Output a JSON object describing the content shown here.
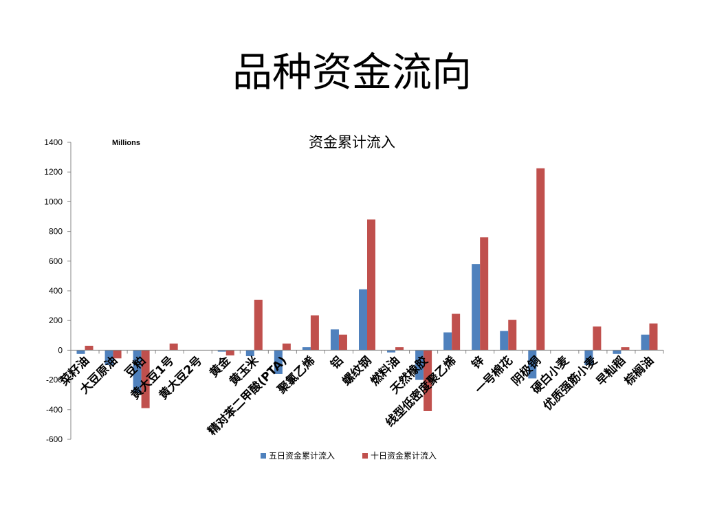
{
  "slide": {
    "title": "品种资金流向"
  },
  "chart_data": {
    "type": "bar",
    "title": "资金累计流入",
    "unit_label": "Millions",
    "ylim": [
      -600,
      1400
    ],
    "yticks": [
      1400,
      1200,
      1000,
      800,
      600,
      400,
      200,
      0,
      -200,
      -400,
      -600
    ],
    "grid": false,
    "legend_position": "bottom",
    "categories": [
      "菜籽油",
      "大豆原油",
      "豆粕",
      "黄大豆1号",
      "黄大豆2号",
      "黄金",
      "黄玉米",
      "精对苯二甲酸(PTA)",
      "聚氯乙烯",
      "铝",
      "螺纹钢",
      "燃料油",
      "天然橡胶",
      "线型低密度聚乙烯",
      "锌",
      "一号棉花",
      "阴极铜",
      "硬白小麦",
      "优质强筋小麦",
      "早籼稻",
      "棕榈油"
    ],
    "series": [
      {
        "name": "五日资金累计流入",
        "color": "#4f81bd",
        "values": [
          -25,
          -100,
          -290,
          0,
          0,
          -10,
          -40,
          -160,
          20,
          140,
          410,
          -15,
          -200,
          120,
          580,
          130,
          -190,
          0,
          -100,
          -25,
          105
        ]
      },
      {
        "name": "十日资金累计流入",
        "color": "#c0504d",
        "values": [
          30,
          -55,
          -390,
          45,
          0,
          -35,
          340,
          45,
          235,
          105,
          880,
          20,
          -410,
          245,
          760,
          205,
          1225,
          0,
          160,
          20,
          180
        ]
      }
    ]
  }
}
